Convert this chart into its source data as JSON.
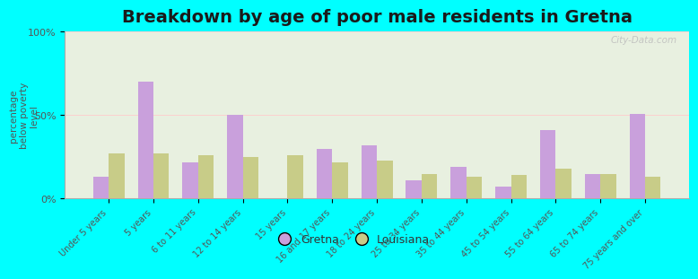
{
  "title": "Breakdown by age of poor male residents in Gretna",
  "ylabel": "percentage\nbelow poverty\nlevel",
  "categories": [
    "Under 5 years",
    "5 years",
    "6 to 11 years",
    "12 to 14 years",
    "15 years",
    "16 and 17 years",
    "18 to 24 years",
    "25 to 34 years",
    "35 to 44 years",
    "45 to 54 years",
    "55 to 64 years",
    "65 to 74 years",
    "75 years and over"
  ],
  "gretna_values": [
    13,
    70,
    22,
    50,
    0,
    30,
    32,
    11,
    19,
    7,
    41,
    15,
    51
  ],
  "louisiana_values": [
    27,
    27,
    26,
    25,
    26,
    22,
    23,
    15,
    13,
    14,
    18,
    15,
    13
  ],
  "gretna_color": "#c9a0dc",
  "louisiana_color": "#c8cc88",
  "background_color": "#00ffff",
  "plot_bg_color": "#e8f0e0",
  "ylim": [
    0,
    100
  ],
  "yticks": [
    0,
    50,
    100
  ],
  "ytick_labels": [
    "0%",
    "50%",
    "100%"
  ],
  "bar_width": 0.35,
  "title_fontsize": 14,
  "ylabel_fontsize": 7.5,
  "tick_fontsize": 7,
  "legend_labels": [
    "Gretna",
    "Louisiana"
  ],
  "watermark": "City-Data.com"
}
